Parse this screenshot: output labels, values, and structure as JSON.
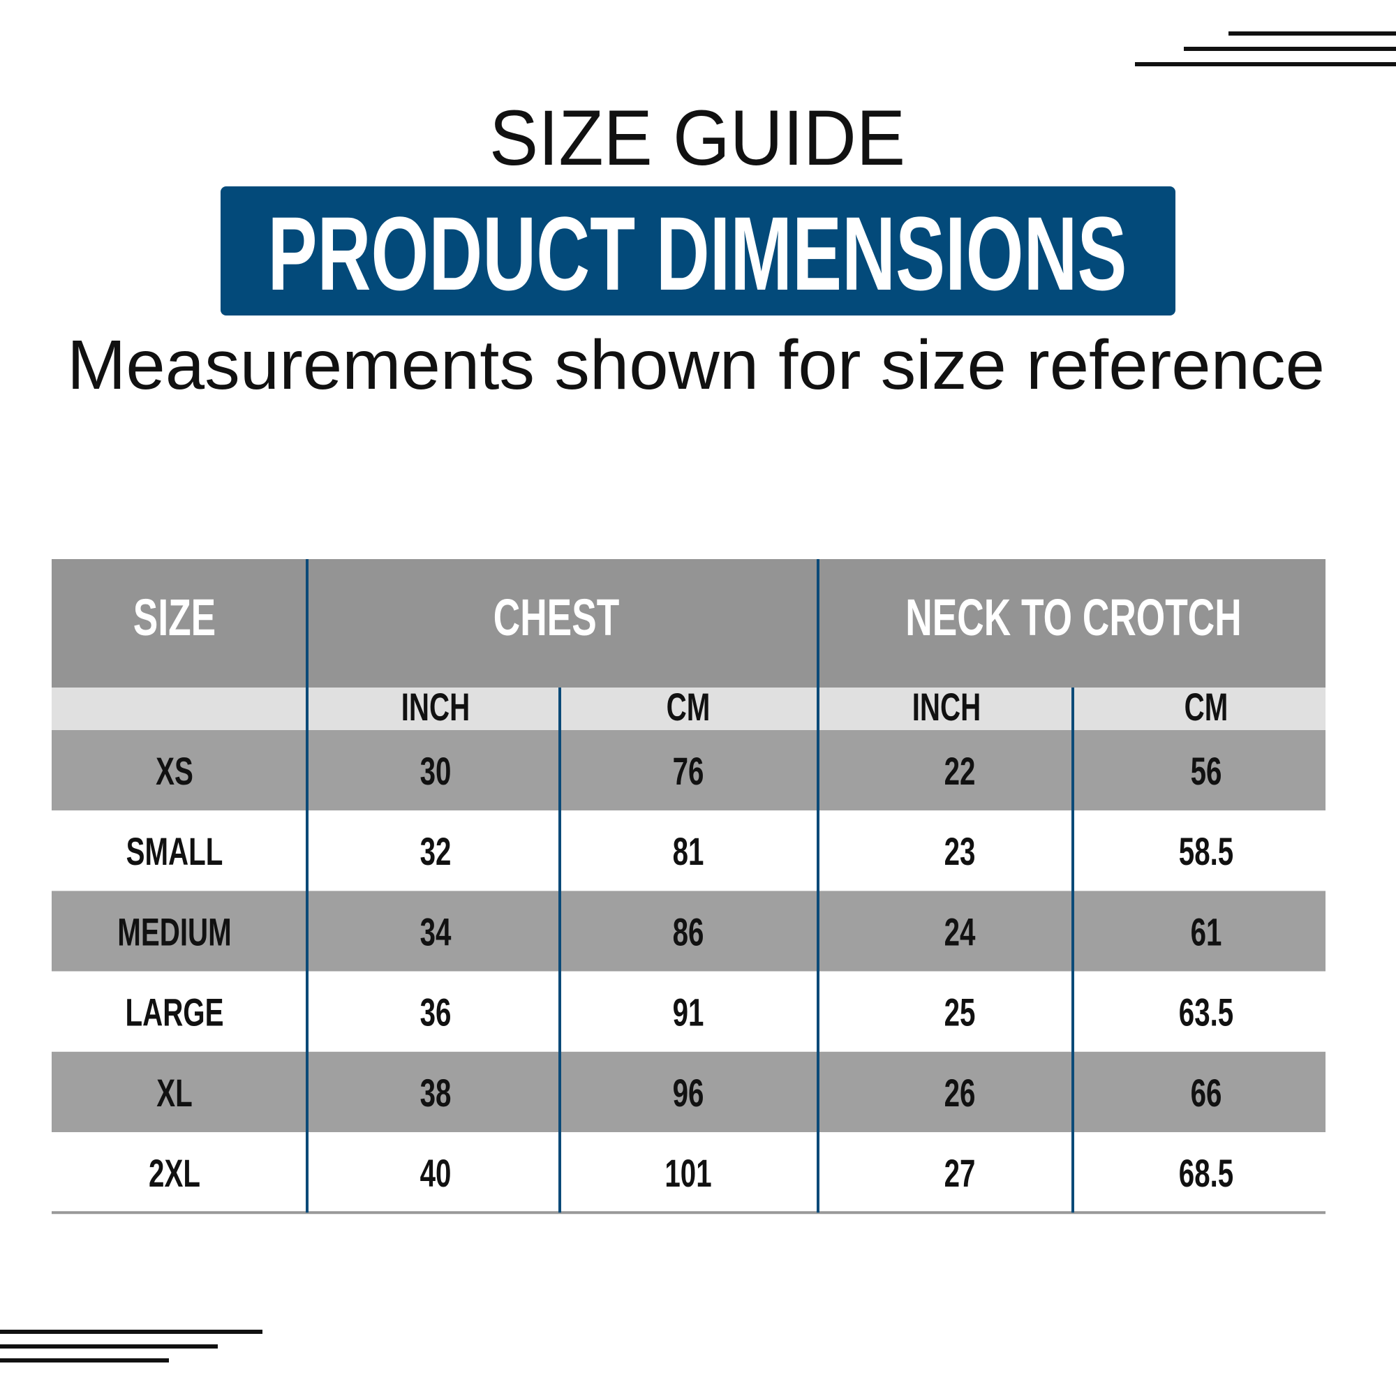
{
  "header": {
    "title": "SIZE GUIDE",
    "banner": "PRODUCT DIMENSIONS",
    "subtitle": "Measurements shown for size reference"
  },
  "table": {
    "groups": [
      "SIZE",
      "CHEST",
      "NECK TO CROTCH"
    ],
    "units": [
      "INCH",
      "CM",
      "INCH",
      "CM"
    ],
    "rows": [
      [
        "XS",
        30,
        76,
        22,
        56
      ],
      [
        "SMALL",
        32,
        81,
        23,
        58.5
      ],
      [
        "MEDIUM",
        34,
        86,
        24,
        61
      ],
      [
        "LARGE",
        36,
        91,
        25,
        63.5
      ],
      [
        "XL",
        38,
        96,
        26,
        66
      ],
      [
        "2XL",
        40,
        101,
        27,
        68.5
      ]
    ]
  }
}
